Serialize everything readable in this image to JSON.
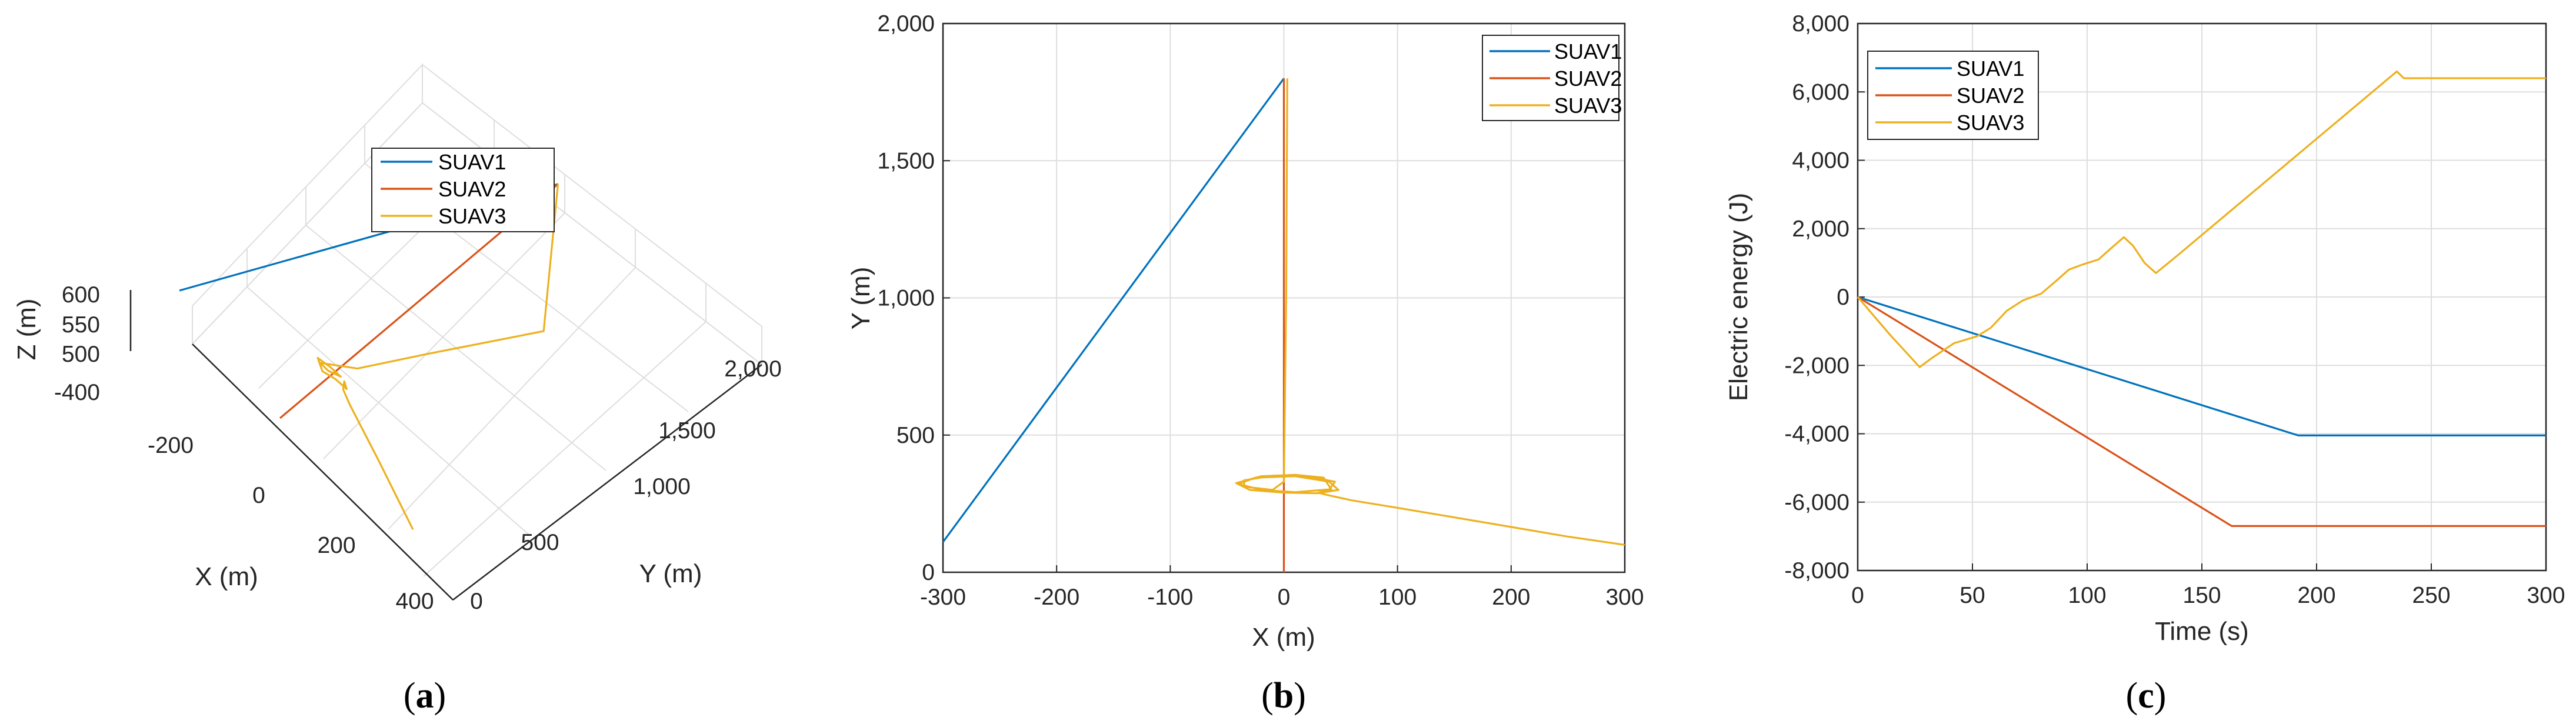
{
  "colors": {
    "SUAV1": "#0072BD",
    "SUAV2": "#D95319",
    "SUAV3": "#EDB120",
    "axis": "#262626",
    "grid": "#dedede"
  },
  "chart_data": [
    {
      "type": "line",
      "panel": "(a)",
      "view": "3d",
      "xlabel": "X (m)",
      "ylabel": "Y (m)",
      "zlabel": "Z (m)",
      "x_ticks": [
        "-200",
        "0",
        "200",
        "400"
      ],
      "y_ticks": [
        "0",
        "500",
        "1,000",
        "1,500",
        "2,000"
      ],
      "z_ticks": [
        "-400",
        "500",
        "550",
        "600"
      ],
      "legend_position": "top-center",
      "grid": true,
      "series": [
        {
          "name": "SUAV1",
          "x": [
            -300,
            0
          ],
          "y": [
            110,
            1800
          ],
          "z": [
            520,
            560
          ]
        },
        {
          "name": "SUAV2",
          "x": [
            0,
            0
          ],
          "y": [
            0,
            1800
          ],
          "z": [
            520,
            560
          ]
        },
        {
          "name": "SUAV3",
          "x": [
            300,
            240,
            170,
            110,
            60,
            35,
            30,
            40,
            20,
            -10,
            -30,
            -5,
            25,
            5,
            -20,
            0,
            40,
            100,
            200,
            0
          ],
          "y": [
            100,
            150,
            210,
            260,
            300,
            320,
            340,
            330,
            310,
            300,
            320,
            340,
            330,
            300,
            310,
            340,
            400,
            700,
            1200,
            1800
          ],
          "z": [
            505,
            510,
            515,
            518,
            522,
            528,
            535,
            530,
            538,
            534,
            540,
            536,
            542,
            545,
            540,
            544,
            552,
            556,
            560,
            560
          ]
        }
      ]
    },
    {
      "type": "line",
      "panel": "(b)",
      "xlabel": "X (m)",
      "ylabel": "Y (m)",
      "xlim": [
        -300,
        300
      ],
      "ylim": [
        0,
        2000
      ],
      "x_ticks": [
        "-300",
        "-200",
        "-100",
        "0",
        "100",
        "200",
        "300"
      ],
      "y_ticks": [
        "0",
        "500",
        "1,000",
        "1,500",
        "2,000"
      ],
      "legend_position": "top-right",
      "grid": true,
      "series": [
        {
          "name": "SUAV1",
          "x": [
            -300,
            0
          ],
          "y": [
            110,
            1800
          ]
        },
        {
          "name": "SUAV2",
          "x": [
            0,
            0
          ],
          "y": [
            0,
            1800
          ]
        },
        {
          "name": "SUAV3",
          "x": [
            300,
            250,
            200,
            150,
            100,
            60,
            40,
            30,
            42,
            35,
            10,
            -20,
            -42,
            -30,
            0,
            30,
            48,
            40,
            10,
            -25,
            -40,
            -20,
            10,
            40,
            45,
            20,
            -10,
            -35,
            -35,
            -10,
            0,
            2,
            3
          ],
          "y": [
            100,
            130,
            165,
            200,
            235,
            262,
            280,
            290,
            300,
            345,
            355,
            350,
            325,
            300,
            290,
            288,
            300,
            330,
            350,
            345,
            322,
            300,
            292,
            302,
            330,
            350,
            352,
            335,
            312,
            300,
            330,
            1000,
            1800
          ]
        }
      ]
    },
    {
      "type": "line",
      "panel": "(c)",
      "xlabel": "Time (s)",
      "ylabel": "Electric energy (J)",
      "xlim": [
        0,
        300
      ],
      "ylim": [
        -8000,
        8000
      ],
      "x_ticks": [
        "0",
        "50",
        "100",
        "150",
        "200",
        "250",
        "300"
      ],
      "y_ticks": [
        "-8,000",
        "-6,000",
        "-4,000",
        "-2,000",
        "0",
        "2,000",
        "4,000",
        "6,000",
        "8,000"
      ],
      "legend_position": "top-left",
      "grid": true,
      "series": [
        {
          "name": "SUAV1",
          "x": [
            0,
            192,
            300
          ],
          "y": [
            0,
            -4050,
            -4050
          ]
        },
        {
          "name": "SUAV2",
          "x": [
            0,
            163,
            300
          ],
          "y": [
            0,
            -6700,
            -6700
          ]
        },
        {
          "name": "SUAV3",
          "x": [
            0,
            14,
            27,
            32,
            42,
            52,
            58,
            65,
            72,
            80,
            87,
            92,
            98,
            105,
            110,
            116,
            120,
            125,
            130,
            140,
            235,
            238,
            300
          ],
          "y": [
            0,
            -1100,
            -2050,
            -1800,
            -1350,
            -1150,
            -900,
            -400,
            -100,
            100,
            500,
            800,
            950,
            1100,
            1400,
            1750,
            1500,
            1000,
            700,
            1250,
            6600,
            6400,
            6400
          ]
        }
      ]
    }
  ]
}
